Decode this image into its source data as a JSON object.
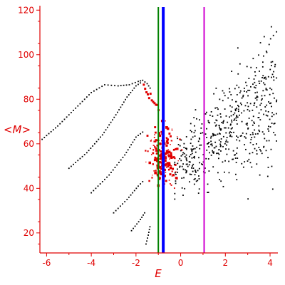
{
  "chart_data": {
    "type": "scatter",
    "title": "",
    "xlabel": "E",
    "ylabel": "<M>",
    "xlim": [
      -6.3,
      4.35
    ],
    "ylim": [
      11,
      122
    ],
    "x_ticks": [
      -6,
      -4,
      -2,
      0,
      2,
      4
    ],
    "y_ticks": [
      20,
      40,
      60,
      80,
      100,
      120
    ],
    "grid": false,
    "legend": "none",
    "colors": {
      "axis": "#e00000",
      "black_points": "#000000",
      "red_points": "#e00000",
      "line_green": "#008000",
      "line_blue": "#0000ff",
      "line_magenta": "#d000d0"
    },
    "vertical_lines": [
      {
        "x": -1.0,
        "color": "#008000",
        "width": "thin"
      },
      {
        "x": -0.78,
        "color": "#0000ff",
        "width": "thick"
      },
      {
        "x": 1.05,
        "color": "#d000d0",
        "width": "thin"
      }
    ],
    "dotted_curves": [
      {
        "points": [
          [
            -6.2,
            62
          ],
          [
            -5.5,
            68
          ],
          [
            -4.8,
            75
          ],
          [
            -4.0,
            83
          ],
          [
            -3.4,
            86.5
          ],
          [
            -2.8,
            86
          ],
          [
            -2.3,
            86.5
          ],
          [
            -1.9,
            88
          ],
          [
            -1.7,
            88.5
          ],
          [
            -1.5,
            87
          ],
          [
            -1.3,
            84
          ]
        ]
      },
      {
        "points": [
          [
            -5.0,
            49
          ],
          [
            -4.2,
            56
          ],
          [
            -3.5,
            64
          ],
          [
            -2.9,
            73
          ],
          [
            -2.4,
            81
          ],
          [
            -2.0,
            86
          ],
          [
            -1.7,
            88
          ]
        ]
      },
      {
        "points": [
          [
            -4.0,
            38
          ],
          [
            -3.2,
            46
          ],
          [
            -2.5,
            55
          ],
          [
            -2.0,
            63
          ],
          [
            -1.6,
            66
          ]
        ]
      },
      {
        "points": [
          [
            -3.0,
            29
          ],
          [
            -2.4,
            35
          ],
          [
            -1.9,
            41
          ],
          [
            -1.6,
            44
          ]
        ]
      },
      {
        "points": [
          [
            -2.2,
            21
          ],
          [
            -1.8,
            26
          ],
          [
            -1.55,
            30
          ]
        ]
      },
      {
        "points": [
          [
            -1.55,
            15
          ],
          [
            -1.45,
            19
          ],
          [
            -1.35,
            24
          ]
        ]
      }
    ],
    "red_cluster": {
      "x_range": [
        -1.6,
        0.35
      ],
      "y_range": [
        30,
        82
      ],
      "center": [
        -0.8,
        55
      ]
    },
    "black_cloud": {
      "x_range": [
        -0.3,
        4.3
      ],
      "y_range": [
        18,
        122
      ],
      "trend": "increasing"
    }
  }
}
